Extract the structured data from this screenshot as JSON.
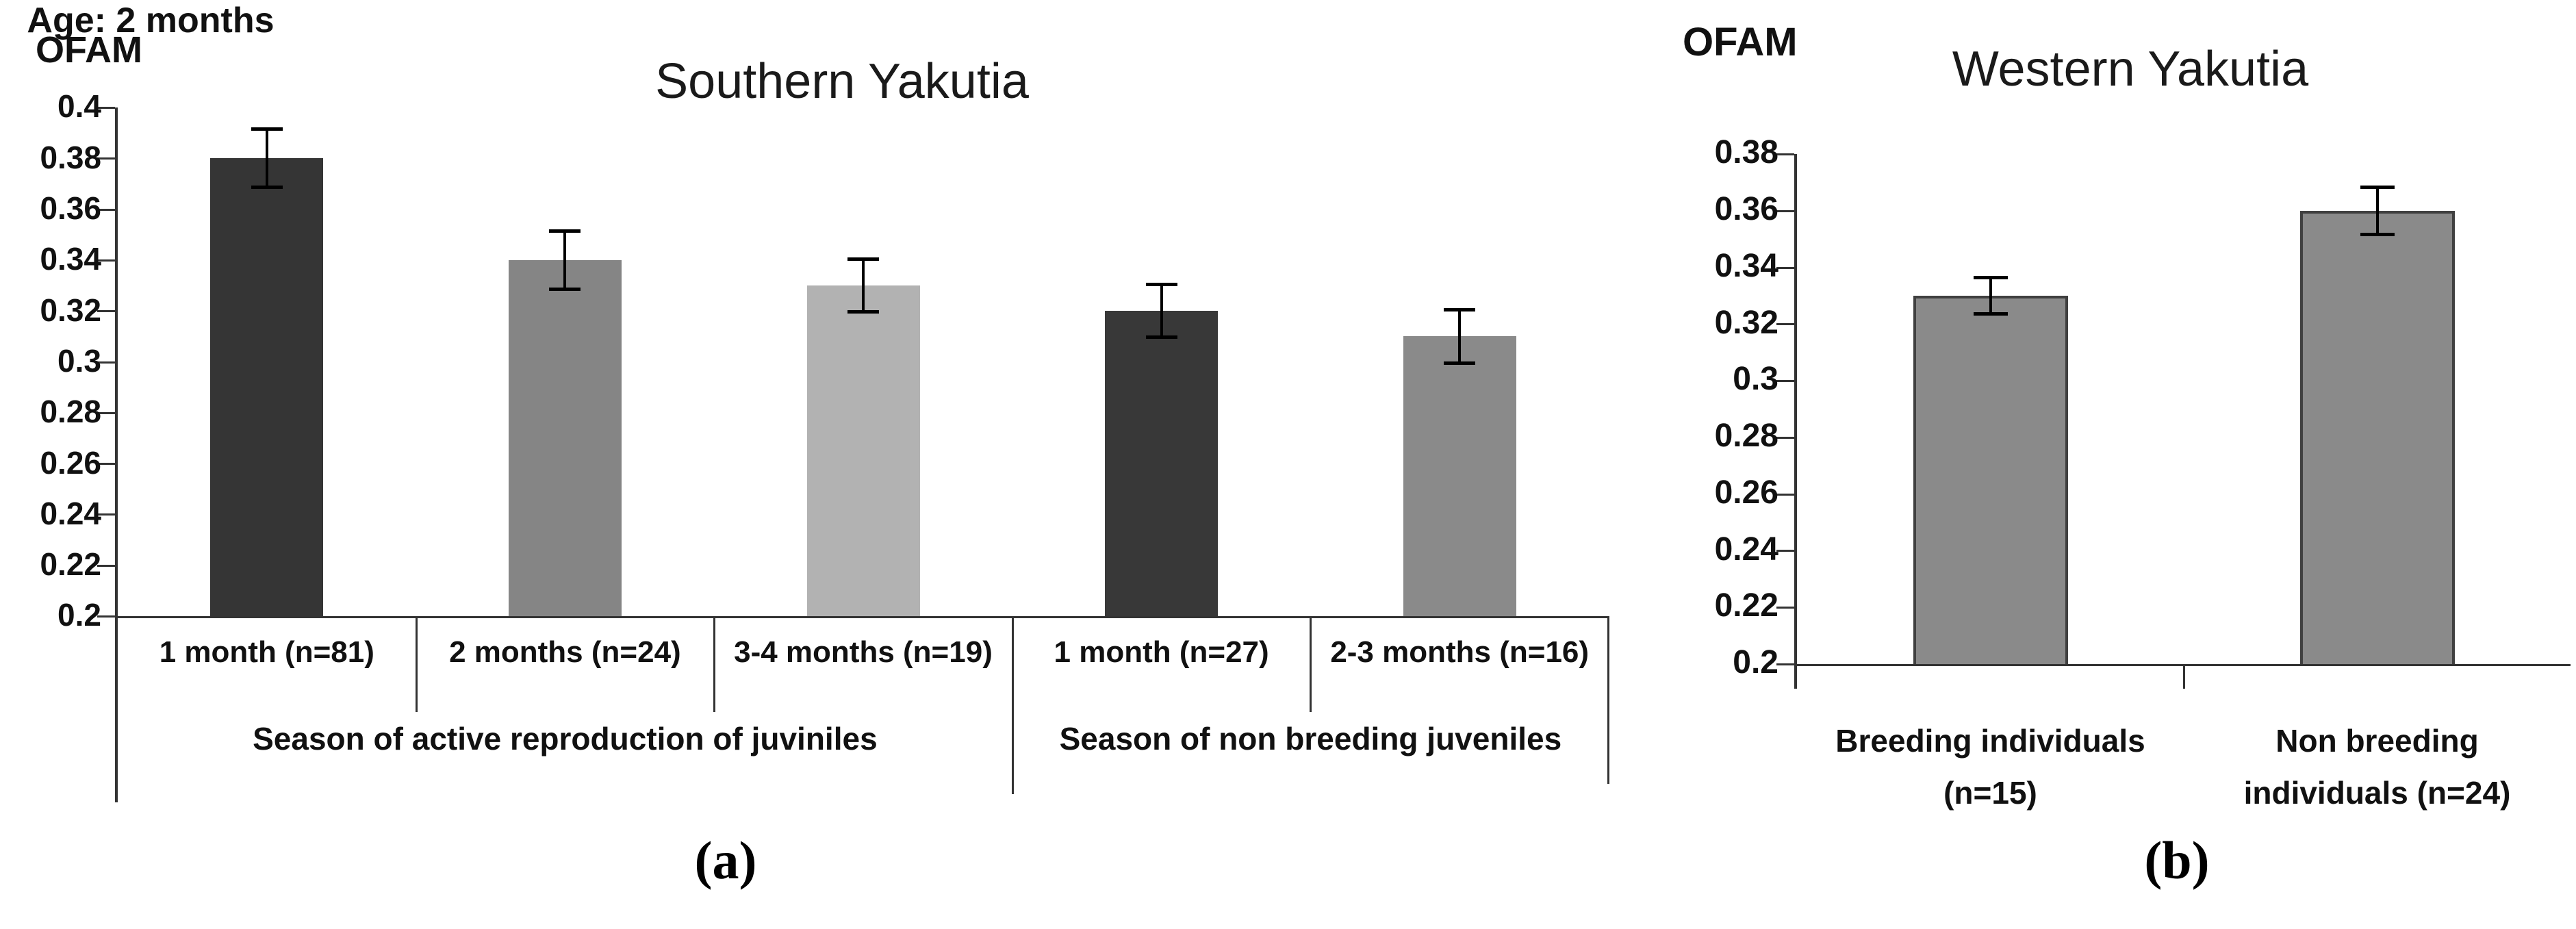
{
  "figure": {
    "ylabel": "OFAM",
    "captions": {
      "a": "(a)",
      "b": "(b)"
    }
  },
  "chart_data": [
    {
      "type": "bar",
      "panel": "a",
      "title": "Southern Yakutia",
      "ylabel": "OFAM",
      "caption": "(a)",
      "ylim": [
        0.2,
        0.4
      ],
      "ytick_step": 0.02,
      "yticks": [
        "0.4",
        "0.38",
        "0.36",
        "0.34",
        "0.32",
        "0.3",
        "0.28",
        "0.26",
        "0.24",
        "0.22",
        "0.2"
      ],
      "grid": false,
      "legend": "none",
      "categories": [
        "1 month (n=81)",
        "2 months (n=24)",
        "3-4 months (n=19)",
        "1 month (n=27)",
        "2-3 months (n=16)"
      ],
      "values": [
        0.38,
        0.34,
        0.33,
        0.32,
        0.31
      ],
      "errors": [
        0.011,
        0.011,
        0.01,
        0.01,
        0.01
      ],
      "bar_colors": [
        "#353535",
        "#858585",
        "#b2b2b2",
        "#383838",
        "#8a8a8a"
      ],
      "bar_border": "none",
      "groups": [
        {
          "label": "Season of active reproduction of juviniles",
          "span": [
            0,
            3
          ]
        },
        {
          "label": "Season of non breeding juveniles",
          "span": [
            3,
            5
          ]
        }
      ]
    },
    {
      "type": "bar",
      "panel": "b",
      "title": "Western Yakutia",
      "ylabel": "OFAM",
      "caption": "(b)",
      "annotation": "Age: 2 months",
      "ylim": [
        0.2,
        0.38
      ],
      "ytick_step": 0.02,
      "yticks": [
        "0.38",
        "0.36",
        "0.34",
        "0.32",
        "0.3",
        "0.28",
        "0.26",
        "0.24",
        "0.22",
        "0.2"
      ],
      "grid": false,
      "legend": "none",
      "categories": [
        "Breeding individuals\n(n=15)",
        "Non breeding\nindividuals (n=24)"
      ],
      "values": [
        0.33,
        0.36
      ],
      "errors": [
        0.006,
        0.008
      ],
      "bar_colors": [
        "#8a8a8a",
        "#8a8a8a"
      ],
      "bar_border": "#404040",
      "groups": []
    }
  ]
}
